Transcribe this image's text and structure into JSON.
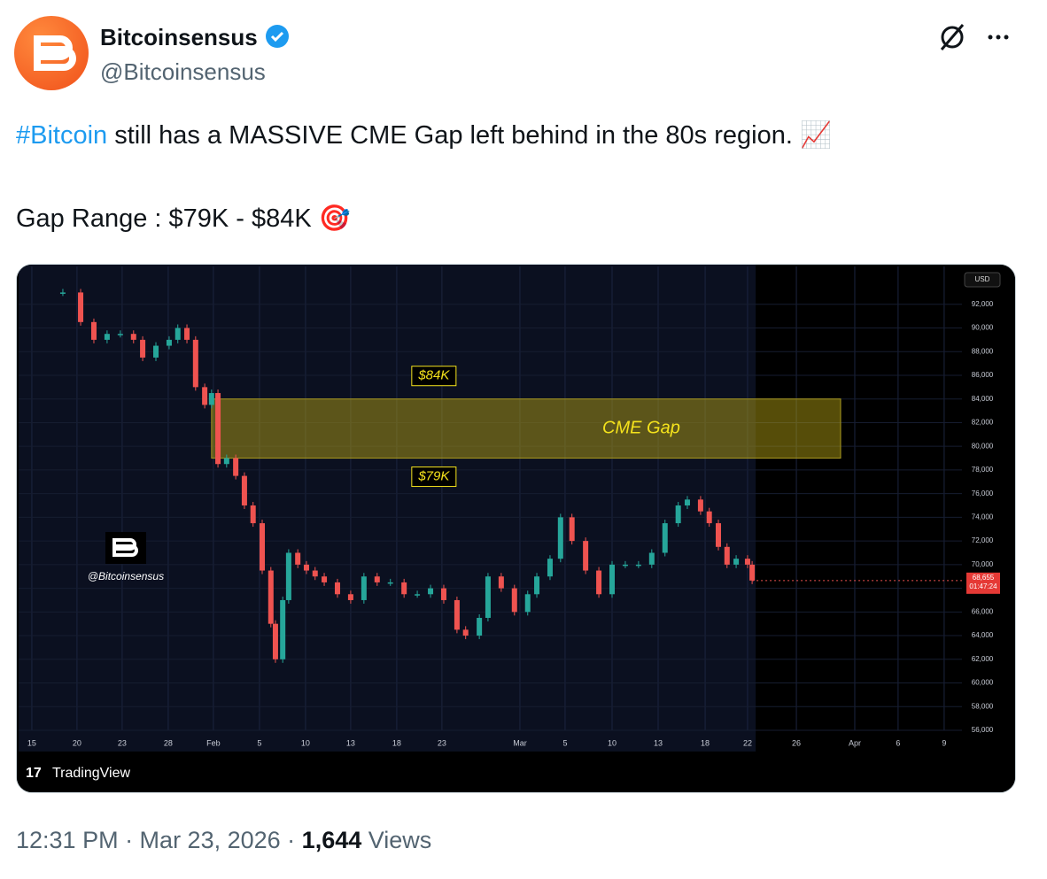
{
  "author": {
    "name": "Bitcoinsensus",
    "handle": "@Bitcoinsensus"
  },
  "tweet": {
    "hashtag": "#Bitcoin",
    "line1": "still has a MASSIVE CME Gap left behind in the 80s region. 📈",
    "line2": "Gap Range : $79K - $84K 🎯"
  },
  "footer": {
    "time": "12:31 PM · Mar 23, 2026 ·",
    "views_count": "1,644",
    "views_label": "Views"
  },
  "chart_data": {
    "type": "candlestick",
    "currency": "USD",
    "watermark": "@Bitcoinsensus",
    "branding": "TradingView",
    "x": [
      0.68,
      1.07,
      1.36,
      1.65,
      1.94,
      2.23,
      2.43,
      2.72,
      3.01,
      3.2,
      3.4,
      3.59,
      3.79,
      3.94,
      4.08,
      4.27,
      4.47,
      4.66,
      4.85,
      5.05,
      5.24,
      5.34,
      5.5,
      5.63,
      5.83,
      6.02,
      6.21,
      6.41,
      6.7,
      6.99,
      7.28,
      7.57,
      7.86,
      8.16,
      8.45,
      8.74,
      9.03,
      9.32,
      9.51,
      9.81,
      10,
      10.29,
      10.58,
      10.87,
      11.07,
      11.36,
      11.59,
      11.84,
      12.14,
      12.43,
      12.72,
      13.01,
      13.3,
      13.59,
      13.88,
      14.17,
      14.37,
      14.66,
      14.85,
      15.05,
      15.24,
      15.44,
      15.69,
      15.79
    ],
    "values": [
      93000,
      90500,
      89000,
      89500,
      89500,
      89000,
      87500,
      88500,
      89000,
      90000,
      89000,
      85000,
      83500,
      84500,
      78500,
      79000,
      77500,
      75000,
      73500,
      69500,
      65000,
      62000,
      67000,
      71000,
      70000,
      69500,
      69000,
      68500,
      67500,
      67000,
      69000,
      68500,
      68500,
      67500,
      67500,
      68000,
      67000,
      64500,
      64000,
      65500,
      69000,
      68000,
      66000,
      67500,
      69000,
      70500,
      74000,
      72000,
      69500,
      67500,
      70000,
      70000,
      70000,
      71000,
      73500,
      75000,
      75500,
      74500,
      73500,
      71500,
      70000,
      70500,
      70000,
      68655
    ],
    "up_color": "#26a69a",
    "down_color": "#ef5350",
    "xlim": [
      -0.29,
      20.39
    ],
    "xticks": [
      {
        "value": 0,
        "label": "15"
      },
      {
        "value": 0.99,
        "label": "20"
      },
      {
        "value": 1.98,
        "label": "23"
      },
      {
        "value": 2.99,
        "label": "28"
      },
      {
        "value": 3.98,
        "label": "Feb"
      },
      {
        "value": 4.99,
        "label": "5"
      },
      {
        "value": 6,
        "label": "10"
      },
      {
        "value": 6.99,
        "label": "13"
      },
      {
        "value": 8,
        "label": "18"
      },
      {
        "value": 8.99,
        "label": "23"
      },
      {
        "value": 10.7,
        "label": "Mar"
      },
      {
        "value": 11.69,
        "label": "5"
      },
      {
        "value": 12.72,
        "label": "10"
      },
      {
        "value": 13.73,
        "label": "13"
      },
      {
        "value": 14.76,
        "label": "18"
      },
      {
        "value": 15.69,
        "label": "22"
      },
      {
        "value": 16.76,
        "label": "26"
      },
      {
        "value": 18.04,
        "label": "Apr"
      },
      {
        "value": 18.99,
        "label": "6"
      },
      {
        "value": 20,
        "label": "9"
      }
    ],
    "ylim": [
      56000,
      95200
    ],
    "yticks": [
      {
        "value": 56000,
        "label": "56,000"
      },
      {
        "value": 58000,
        "label": "58,000"
      },
      {
        "value": 60000,
        "label": "60,000"
      },
      {
        "value": 62000,
        "label": "62,000"
      },
      {
        "value": 64000,
        "label": "64,000"
      },
      {
        "value": 66000,
        "label": "66,000"
      },
      {
        "value": 68000,
        "label": "68,000"
      },
      {
        "value": 70000,
        "label": "70,000"
      },
      {
        "value": 72000,
        "label": "72,000"
      },
      {
        "value": 74000,
        "label": "74,000"
      },
      {
        "value": 76000,
        "label": "76,000"
      },
      {
        "value": 78000,
        "label": "78,000"
      },
      {
        "value": 80000,
        "label": "80,000"
      },
      {
        "value": 82000,
        "label": "82,000"
      },
      {
        "value": 84000,
        "label": "84,000"
      },
      {
        "value": 86000,
        "label": "86,000"
      },
      {
        "value": 88000,
        "label": "88,000"
      },
      {
        "value": 90000,
        "label": "90,000"
      },
      {
        "value": 92000,
        "label": "92,000"
      }
    ],
    "gap": {
      "label": "CME Gap",
      "high": {
        "value": 84000,
        "label": "$84K"
      },
      "low": {
        "value": 79000,
        "label": "$79K"
      },
      "x": [
        3.94,
        17.73
      ]
    },
    "last_price": {
      "value": 68655,
      "label": "68,655"
    },
    "countdown": "01:47:24"
  }
}
